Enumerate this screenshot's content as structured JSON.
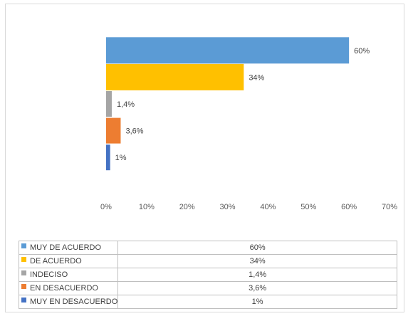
{
  "chart_data": {
    "type": "bar",
    "orientation": "horizontal",
    "categories": [
      "MUY DE ACUERDO",
      "DE ACUERDO",
      "INDECISO",
      "EN DESACUERDO",
      "MUY EN DESACUERDO"
    ],
    "values": [
      60,
      34,
      1.4,
      3.6,
      1
    ],
    "value_labels": [
      "60%",
      "34%",
      "1,4%",
      "3,6%",
      "1%"
    ],
    "colors": [
      "#5b9bd5",
      "#ffc000",
      "#a5a5a5",
      "#ed7d31",
      "#4472c4"
    ],
    "xlim": [
      0,
      70
    ],
    "x_ticks": [
      0,
      10,
      20,
      30,
      40,
      50,
      60,
      70
    ],
    "x_tick_labels": [
      "0%",
      "10%",
      "20%",
      "30%",
      "40%",
      "50%",
      "60%",
      "70%"
    ],
    "grid": false,
    "legend": "data-table-below",
    "title": "",
    "xlabel": "",
    "ylabel": ""
  }
}
